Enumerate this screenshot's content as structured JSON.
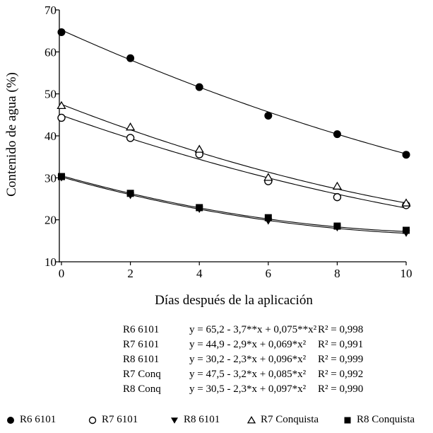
{
  "chart_data": {
    "type": "scatter",
    "xlabel": "Días después de la aplicación",
    "ylabel": "Contenido de agua (%)",
    "xlim": [
      0,
      10
    ],
    "ylim": [
      10,
      70
    ],
    "xticks": [
      "0",
      "2",
      "4",
      "6",
      "8",
      "10"
    ],
    "yticks": [
      "10",
      "20",
      "30",
      "40",
      "50",
      "60",
      "70"
    ],
    "grid": false,
    "legend_position": "bottom",
    "x": [
      0,
      2,
      4,
      6,
      8,
      10
    ],
    "series": [
      {
        "name": "R6 6101",
        "marker": "filled-circle",
        "values": [
          64.7,
          58.5,
          51.6,
          44.8,
          40.4,
          35.5
        ],
        "fit": {
          "a": 65.2,
          "b": -3.7,
          "c": 0.075
        }
      },
      {
        "name": "R7 6101",
        "marker": "open-circle",
        "values": [
          44.3,
          39.5,
          35.6,
          29.2,
          25.4,
          23.5
        ],
        "fit": {
          "a": 44.9,
          "b": -2.9,
          "c": 0.069
        }
      },
      {
        "name": "R8 6101",
        "marker": "filled-triangle-down",
        "values": [
          30.0,
          25.8,
          22.5,
          19.7,
          18.1,
          16.8
        ],
        "fit": {
          "a": 30.2,
          "b": -2.3,
          "c": 0.096
        }
      },
      {
        "name": "R7 Conquista",
        "marker": "open-triangle-up",
        "values": [
          47.2,
          42.1,
          36.8,
          30.1,
          28.0,
          24.0
        ],
        "fit": {
          "a": 47.5,
          "b": -3.2,
          "c": 0.085
        }
      },
      {
        "name": "R8 Conquista",
        "marker": "filled-square",
        "values": [
          30.3,
          26.3,
          22.9,
          20.5,
          18.5,
          17.5
        ],
        "fit": {
          "a": 30.5,
          "b": -2.3,
          "c": 0.097
        }
      }
    ],
    "equations": [
      {
        "name": "R6 6101",
        "equation": "y = 65,2 - 3,7**x + 0,075**x²",
        "r2": "R² = 0,998"
      },
      {
        "name": "R7 6101",
        "equation": "y = 44,9 - 2,9*x + 0,069*x²",
        "r2": "R² = 0,991"
      },
      {
        "name": "R8 6101",
        "equation": "y = 30,2 - 2,3*x + 0,096*x²",
        "r2": "R² = 0,999"
      },
      {
        "name": "R7 Conq",
        "equation": "y = 47,5 - 3,2*x + 0,085*x²",
        "r2": "R² = 0,992"
      },
      {
        "name": "R8 Conq",
        "equation": "y = 30,5 - 2,3*x + 0,097*x²",
        "r2": "R² = 0,990"
      }
    ],
    "legend": [
      "R6 6101",
      "R7 6101",
      "R8 6101",
      "R7 Conquista",
      "R8 Conquista"
    ]
  }
}
